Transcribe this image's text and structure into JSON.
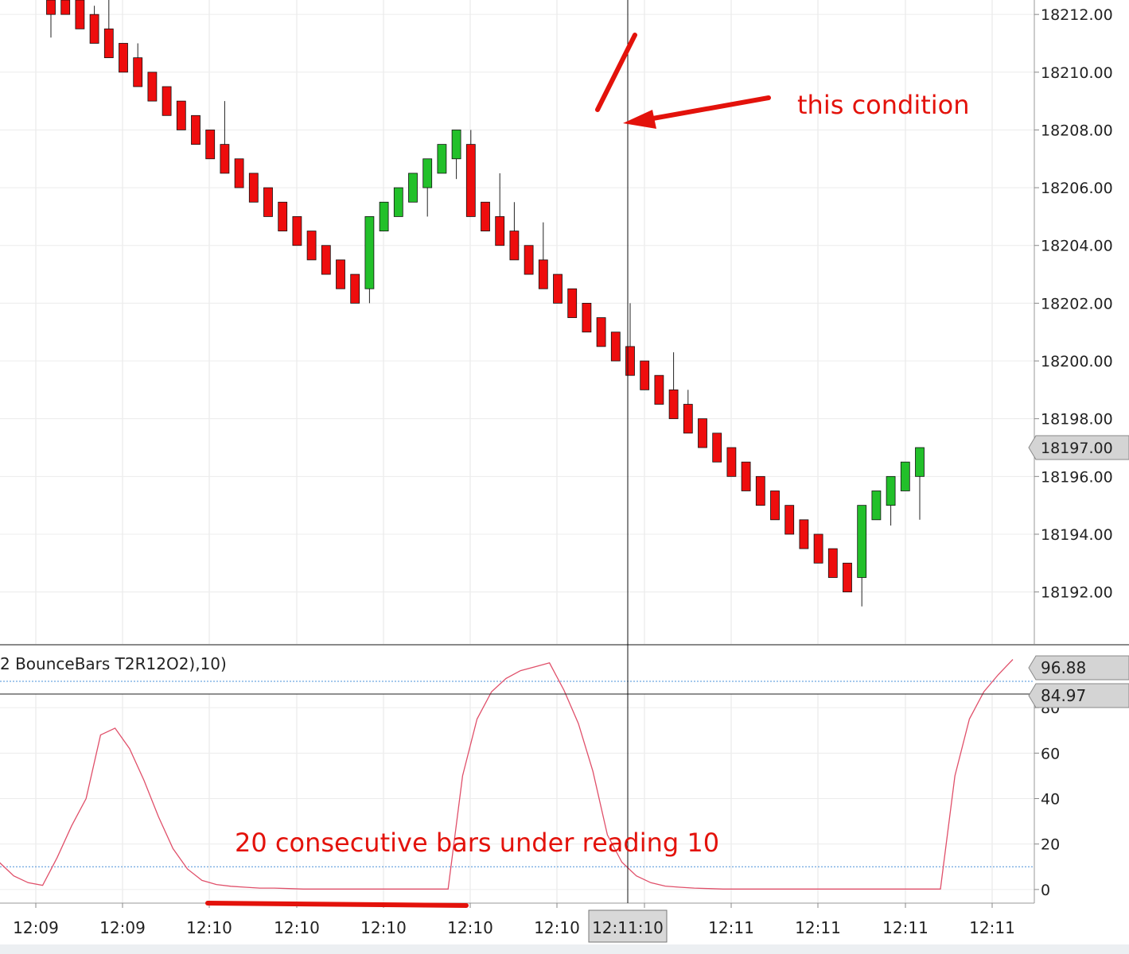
{
  "chart_data": [
    {
      "type": "candlestick",
      "y_ticks": [
        "18212.00",
        "18210.00",
        "18208.00",
        "18206.00",
        "18204.00",
        "18202.00",
        "18200.00",
        "18198.00",
        "18196.00",
        "18194.00",
        "18192.00"
      ],
      "ylim": [
        18190.2,
        18212.5
      ],
      "last_price_label": "18197.00",
      "last_price": 18197.0,
      "candles": [
        {
          "o": 18212.5,
          "c": 18212.0,
          "h": 18212.5,
          "l": 18211.2,
          "d": "down"
        },
        {
          "o": 18212.5,
          "c": 18212.0,
          "h": 18212.5,
          "l": 18212.0,
          "d": "down"
        },
        {
          "o": 18212.5,
          "c": 18211.5,
          "h": 18212.5,
          "l": 18211.5,
          "d": "down"
        },
        {
          "o": 18212.0,
          "c": 18211.0,
          "h": 18212.3,
          "l": 18211.0,
          "d": "down"
        },
        {
          "o": 18211.5,
          "c": 18210.5,
          "h": 18212.5,
          "l": 18210.5,
          "d": "down"
        },
        {
          "o": 18211.0,
          "c": 18210.0,
          "h": 18211.0,
          "l": 18210.0,
          "d": "down"
        },
        {
          "o": 18210.5,
          "c": 18209.5,
          "h": 18211.0,
          "l": 18209.5,
          "d": "down"
        },
        {
          "o": 18210.0,
          "c": 18209.0,
          "h": 18210.0,
          "l": 18209.0,
          "d": "down"
        },
        {
          "o": 18209.5,
          "c": 18208.5,
          "h": 18209.5,
          "l": 18208.5,
          "d": "down"
        },
        {
          "o": 18209.0,
          "c": 18208.0,
          "h": 18209.0,
          "l": 18208.0,
          "d": "down"
        },
        {
          "o": 18208.5,
          "c": 18207.5,
          "h": 18208.5,
          "l": 18207.5,
          "d": "down"
        },
        {
          "o": 18208.0,
          "c": 18207.0,
          "h": 18208.0,
          "l": 18207.0,
          "d": "down"
        },
        {
          "o": 18207.5,
          "c": 18206.5,
          "h": 18209.0,
          "l": 18206.5,
          "d": "down"
        },
        {
          "o": 18207.0,
          "c": 18206.0,
          "h": 18207.0,
          "l": 18206.0,
          "d": "down"
        },
        {
          "o": 18206.5,
          "c": 18205.5,
          "h": 18206.5,
          "l": 18205.5,
          "d": "down"
        },
        {
          "o": 18206.0,
          "c": 18205.0,
          "h": 18206.0,
          "l": 18205.0,
          "d": "down"
        },
        {
          "o": 18205.5,
          "c": 18204.5,
          "h": 18205.5,
          "l": 18204.5,
          "d": "down"
        },
        {
          "o": 18205.0,
          "c": 18204.0,
          "h": 18205.0,
          "l": 18204.0,
          "d": "down"
        },
        {
          "o": 18204.5,
          "c": 18203.5,
          "h": 18204.3,
          "l": 18203.5,
          "d": "down"
        },
        {
          "o": 18204.0,
          "c": 18203.0,
          "h": 18204.0,
          "l": 18203.0,
          "d": "down"
        },
        {
          "o": 18203.5,
          "c": 18202.5,
          "h": 18203.5,
          "l": 18202.5,
          "d": "down"
        },
        {
          "o": 18203.0,
          "c": 18202.0,
          "h": 18203.0,
          "l": 18202.0,
          "d": "down"
        },
        {
          "o": 18202.5,
          "c": 18205.0,
          "h": 18205.0,
          "l": 18202.0,
          "d": "up"
        },
        {
          "o": 18204.5,
          "c": 18205.5,
          "h": 18205.5,
          "l": 18204.5,
          "d": "up"
        },
        {
          "o": 18205.0,
          "c": 18206.0,
          "h": 18206.0,
          "l": 18205.0,
          "d": "up"
        },
        {
          "o": 18205.5,
          "c": 18206.5,
          "h": 18206.5,
          "l": 18205.5,
          "d": "up"
        },
        {
          "o": 18206.0,
          "c": 18207.0,
          "h": 18207.0,
          "l": 18205.0,
          "d": "up"
        },
        {
          "o": 18206.5,
          "c": 18207.5,
          "h": 18207.5,
          "l": 18206.5,
          "d": "up"
        },
        {
          "o": 18207.0,
          "c": 18208.0,
          "h": 18208.0,
          "l": 18206.3,
          "d": "up"
        },
        {
          "o": 18207.5,
          "c": 18205.0,
          "h": 18208.0,
          "l": 18205.0,
          "d": "down"
        },
        {
          "o": 18205.5,
          "c": 18204.5,
          "h": 18205.5,
          "l": 18204.5,
          "d": "down"
        },
        {
          "o": 18205.0,
          "c": 18204.0,
          "h": 18206.5,
          "l": 18204.0,
          "d": "down"
        },
        {
          "o": 18204.5,
          "c": 18203.5,
          "h": 18205.5,
          "l": 18203.5,
          "d": "down"
        },
        {
          "o": 18204.0,
          "c": 18203.0,
          "h": 18204.0,
          "l": 18203.0,
          "d": "down"
        },
        {
          "o": 18203.5,
          "c": 18202.5,
          "h": 18204.8,
          "l": 18202.5,
          "d": "down"
        },
        {
          "o": 18203.0,
          "c": 18202.0,
          "h": 18203.0,
          "l": 18202.0,
          "d": "down"
        },
        {
          "o": 18202.5,
          "c": 18201.5,
          "h": 18202.5,
          "l": 18201.5,
          "d": "down"
        },
        {
          "o": 18202.0,
          "c": 18201.0,
          "h": 18202.0,
          "l": 18201.0,
          "d": "down"
        },
        {
          "o": 18201.5,
          "c": 18200.5,
          "h": 18201.5,
          "l": 18200.5,
          "d": "down"
        },
        {
          "o": 18201.0,
          "c": 18200.0,
          "h": 18201.0,
          "l": 18200.0,
          "d": "down"
        },
        {
          "o": 18200.5,
          "c": 18199.5,
          "h": 18202.0,
          "l": 18199.5,
          "d": "down"
        },
        {
          "o": 18200.0,
          "c": 18199.0,
          "h": 18200.0,
          "l": 18199.0,
          "d": "down"
        },
        {
          "o": 18199.5,
          "c": 18198.5,
          "h": 18199.5,
          "l": 18198.5,
          "d": "down"
        },
        {
          "o": 18199.0,
          "c": 18198.0,
          "h": 18200.3,
          "l": 18198.0,
          "d": "down"
        },
        {
          "o": 18198.5,
          "c": 18197.5,
          "h": 18199.0,
          "l": 18197.5,
          "d": "down"
        },
        {
          "o": 18198.0,
          "c": 18197.0,
          "h": 18198.0,
          "l": 18197.0,
          "d": "down"
        },
        {
          "o": 18197.5,
          "c": 18196.5,
          "h": 18197.5,
          "l": 18196.5,
          "d": "down"
        },
        {
          "o": 18197.0,
          "c": 18196.0,
          "h": 18197.0,
          "l": 18196.0,
          "d": "down"
        },
        {
          "o": 18196.5,
          "c": 18195.5,
          "h": 18196.5,
          "l": 18195.5,
          "d": "down"
        },
        {
          "o": 18196.0,
          "c": 18195.0,
          "h": 18196.0,
          "l": 18195.0,
          "d": "down"
        },
        {
          "o": 18195.5,
          "c": 18194.5,
          "h": 18195.5,
          "l": 18194.5,
          "d": "down"
        },
        {
          "o": 18195.0,
          "c": 18194.0,
          "h": 18195.0,
          "l": 18194.0,
          "d": "down"
        },
        {
          "o": 18194.5,
          "c": 18193.5,
          "h": 18194.5,
          "l": 18193.5,
          "d": "down"
        },
        {
          "o": 18194.0,
          "c": 18193.0,
          "h": 18194.0,
          "l": 18193.0,
          "d": "down"
        },
        {
          "o": 18193.5,
          "c": 18192.5,
          "h": 18193.5,
          "l": 18192.5,
          "d": "down"
        },
        {
          "o": 18193.0,
          "c": 18192.0,
          "h": 18193.0,
          "l": 18192.0,
          "d": "down"
        },
        {
          "o": 18192.5,
          "c": 18195.0,
          "h": 18195.0,
          "l": 18191.5,
          "d": "up"
        },
        {
          "o": 18194.5,
          "c": 18195.5,
          "h": 18195.5,
          "l": 18194.5,
          "d": "up"
        },
        {
          "o": 18195.0,
          "c": 18196.0,
          "h": 18196.0,
          "l": 18194.3,
          "d": "up"
        },
        {
          "o": 18195.5,
          "c": 18196.5,
          "h": 18196.5,
          "l": 18195.5,
          "d": "up"
        },
        {
          "o": 18196.0,
          "c": 18197.0,
          "h": 18197.0,
          "l": 18194.5,
          "d": "up"
        }
      ]
    },
    {
      "type": "line",
      "label": "2 BounceBars T2R12O2),10)",
      "y_ticks": [
        "0",
        "20",
        "40",
        "60",
        "80"
      ],
      "ylim": [
        -6,
        86
      ],
      "reference_lines": [
        10,
        90
      ],
      "badges": [
        "96.88",
        "84.97"
      ],
      "values": [
        12,
        6,
        3,
        1.8,
        14,
        28,
        40,
        68,
        71,
        62,
        48,
        32,
        18,
        9,
        4,
        2.2,
        1.4,
        1,
        0.6,
        0.6,
        0.4,
        0.2,
        0.2,
        0.2,
        0.2,
        0.2,
        0.2,
        0.2,
        0.2,
        0.2,
        0.2,
        0.2,
        50,
        75,
        87,
        92,
        94,
        95,
        96,
        89,
        73,
        52,
        24,
        12,
        6,
        3,
        1.5,
        1,
        0.6,
        0.4,
        0.2,
        0.2,
        0.2,
        0.2,
        0.2,
        0.2,
        0.2,
        0.2,
        0.2,
        0.2,
        0.2,
        0.2,
        0.2,
        0.2,
        0.2,
        0.2,
        50,
        75,
        87,
        93,
        96.88
      ]
    }
  ],
  "x_ticks": [
    "12:09",
    "12:09",
    "12:10",
    "12:10",
    "12:10",
    "12:10",
    "12:10",
    "12:11",
    "12:11",
    "12:11",
    "12:11",
    "12:11"
  ],
  "crosshair_time_label": "12:11:10",
  "annotations": {
    "top_note": "this condition",
    "bottom_note": "20 consecutive bars under reading 10"
  },
  "colors": {
    "up": "#22c02a",
    "down": "#ee0d0d",
    "indicator_line": "#e0506a",
    "reference_line": "#4a90d9",
    "annotation": "#e3120b"
  }
}
